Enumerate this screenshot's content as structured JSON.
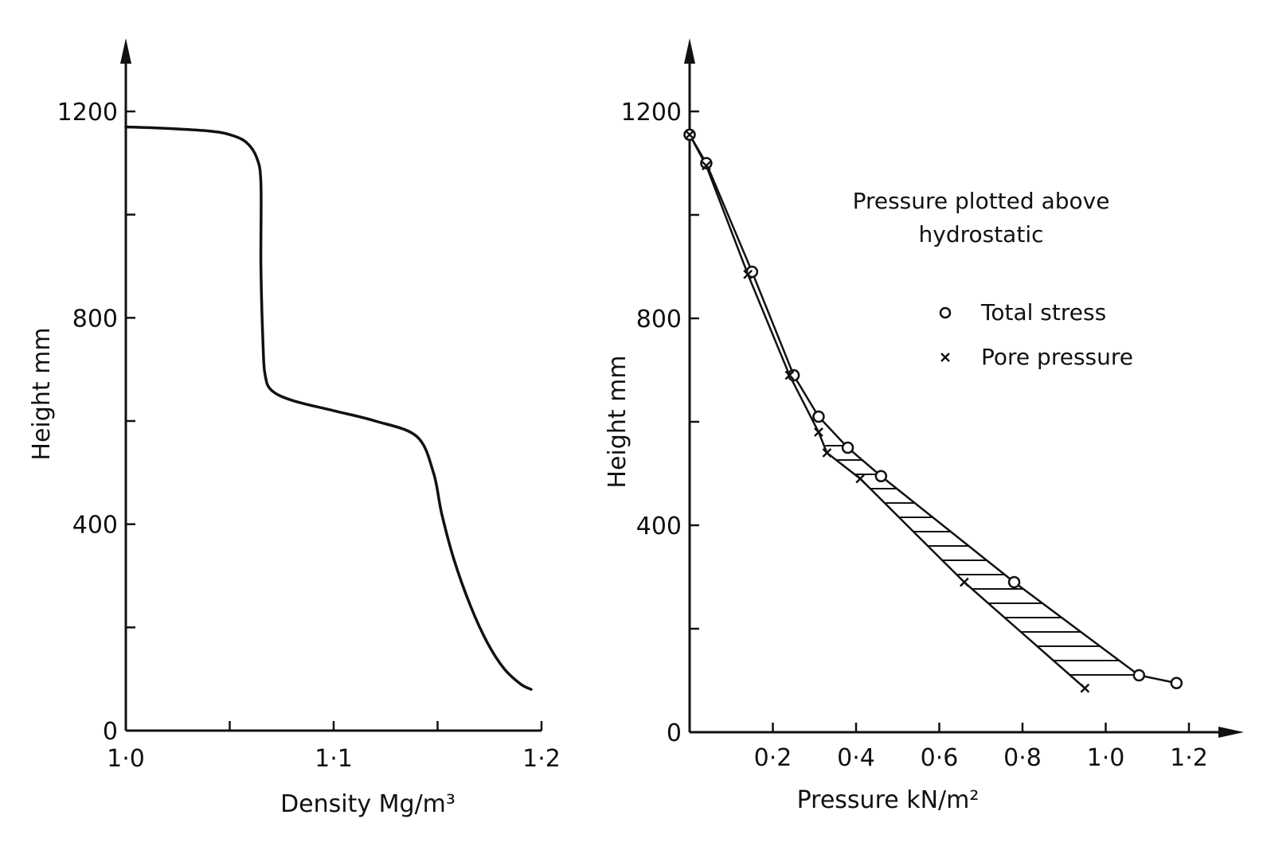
{
  "chart_data": [
    {
      "type": "line",
      "xlabel": "Density  Mg/m³",
      "ylabel": "Height  mm",
      "xlim": [
        1.0,
        1.2
      ],
      "ylim": [
        0,
        1200
      ],
      "xticks": [
        1.0,
        1.05,
        1.1,
        1.15,
        1.2
      ],
      "xtick_labels": [
        "1·0",
        "1·1",
        "1·2"
      ],
      "xtick_label_values": [
        1.0,
        1.1,
        1.2
      ],
      "yticks": [
        0,
        200,
        400,
        600,
        800,
        1000,
        1200
      ],
      "ytick_labels": [
        "0",
        "400",
        "800",
        "1200"
      ],
      "ytick_label_values": [
        0,
        400,
        800,
        1200
      ],
      "series": [
        {
          "x": [
            1.0,
            1.02,
            1.04,
            1.05,
            1.058,
            1.063,
            1.065,
            1.065,
            1.066,
            1.067,
            1.07,
            1.08,
            1.1,
            1.12,
            1.14,
            1.148,
            1.152,
            1.158,
            1.166,
            1.174,
            1.182,
            1.19,
            1.195
          ],
          "y": [
            1170,
            1167,
            1162,
            1155,
            1140,
            1110,
            1060,
            900,
            750,
            690,
            660,
            640,
            620,
            600,
            570,
            500,
            420,
            330,
            240,
            170,
            120,
            90,
            80
          ]
        }
      ],
      "grid": false
    },
    {
      "type": "scatter",
      "xlabel": "Pressure  kN/m²",
      "ylabel": "Height  mm",
      "xlim": [
        0,
        1.22
      ],
      "ylim": [
        0,
        1200
      ],
      "xticks": [
        0.2,
        0.4,
        0.6,
        0.8,
        1.0,
        1.2
      ],
      "xtick_labels": [
        "0·2",
        "0·4",
        "0·6",
        "0·8",
        "1·0",
        "1·2"
      ],
      "yticks": [
        0,
        200,
        400,
        600,
        800,
        1000,
        1200
      ],
      "ytick_labels": [
        "0",
        "400",
        "800",
        "1200"
      ],
      "ytick_label_values": [
        0,
        400,
        800,
        1200
      ],
      "annotation": [
        "Pressure plotted above",
        "hydrostatic"
      ],
      "legend": {
        "placement": "top-right"
      },
      "series": [
        {
          "name": "Total stress",
          "marker": "o",
          "x": [
            0.0,
            0.04,
            0.15,
            0.25,
            0.31,
            0.38,
            0.46,
            0.78,
            1.08,
            1.17
          ],
          "y": [
            1155,
            1100,
            890,
            690,
            610,
            550,
            495,
            290,
            110,
            95
          ]
        },
        {
          "name": "Pore pressure",
          "marker": "x",
          "x": [
            0.0,
            0.04,
            0.14,
            0.24,
            0.31,
            0.33,
            0.41,
            0.66,
            0.95
          ],
          "y": [
            1155,
            1095,
            885,
            690,
            580,
            540,
            490,
            290,
            85
          ]
        }
      ],
      "grid": false
    }
  ]
}
